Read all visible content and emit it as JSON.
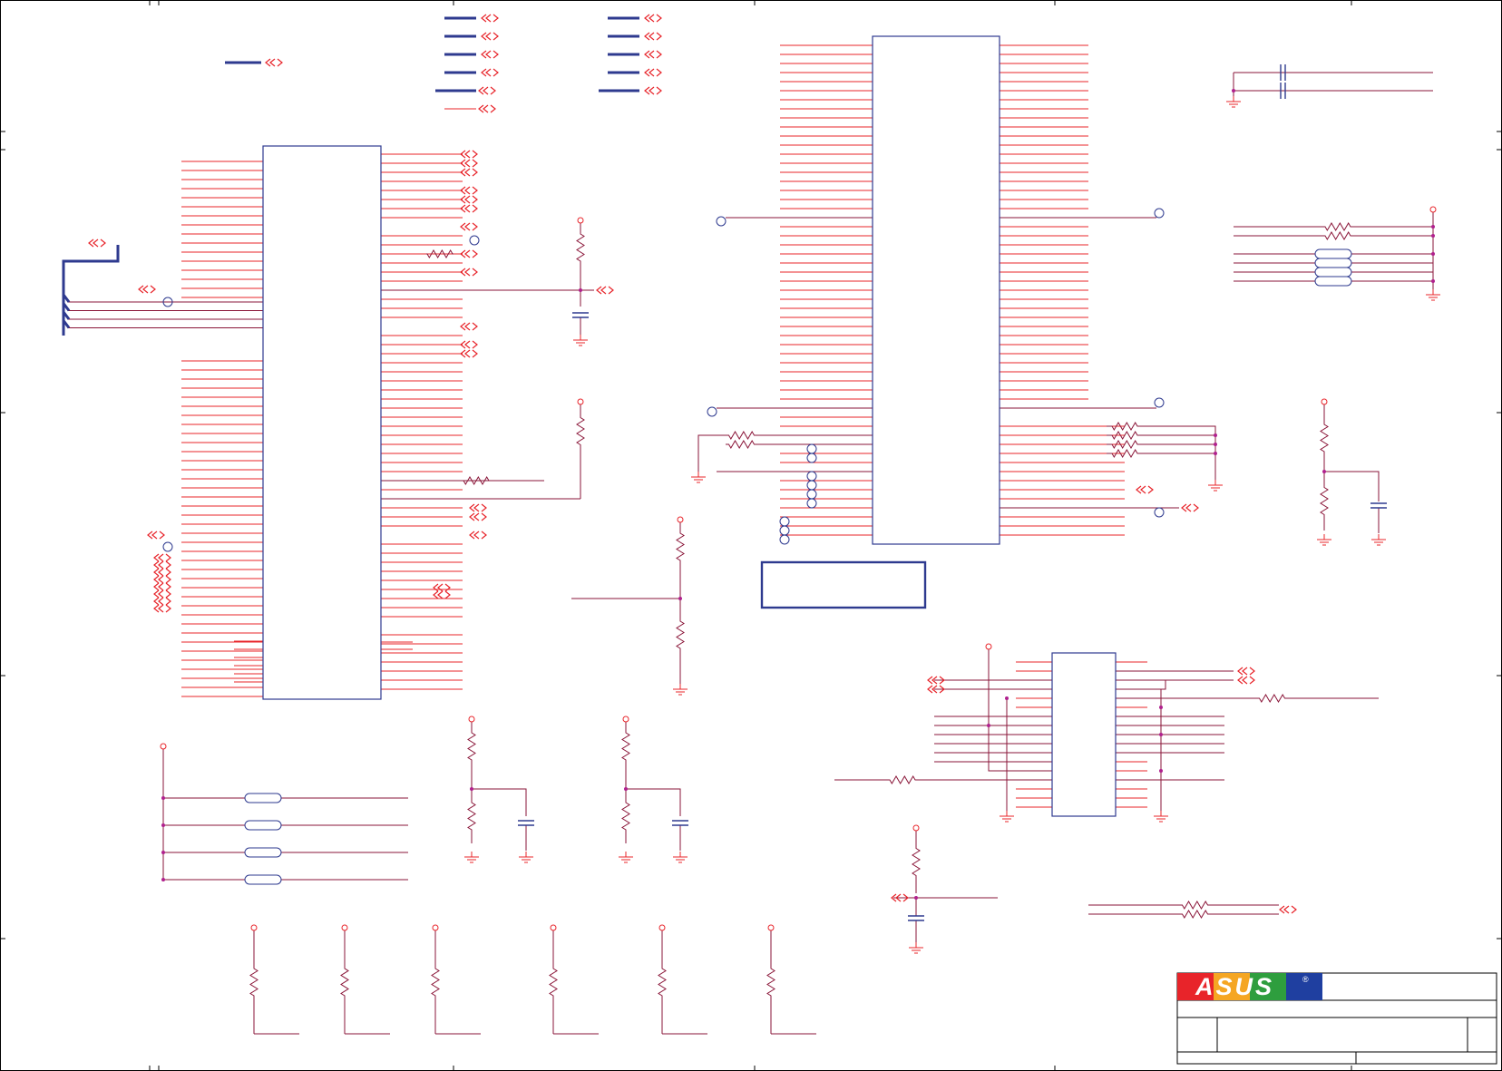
{
  "title_block": {
    "logo_text": "ASUS",
    "registered_mark": "®"
  },
  "colors": {
    "wire_red": "#e8242a",
    "wire_maroon": "#8a1538",
    "bus_blue": "#2e3a8f",
    "outline_blue": "#2e3a8f",
    "logo_red": "#e8242a",
    "logo_blue": "#1f3fa0",
    "border": "#000000"
  },
  "component_icons": [
    "resistor-icon",
    "capacitor-icon",
    "ground-icon",
    "power-pin-icon",
    "testpoint-icon",
    "offpage-connector-icon",
    "jumper-icon"
  ]
}
